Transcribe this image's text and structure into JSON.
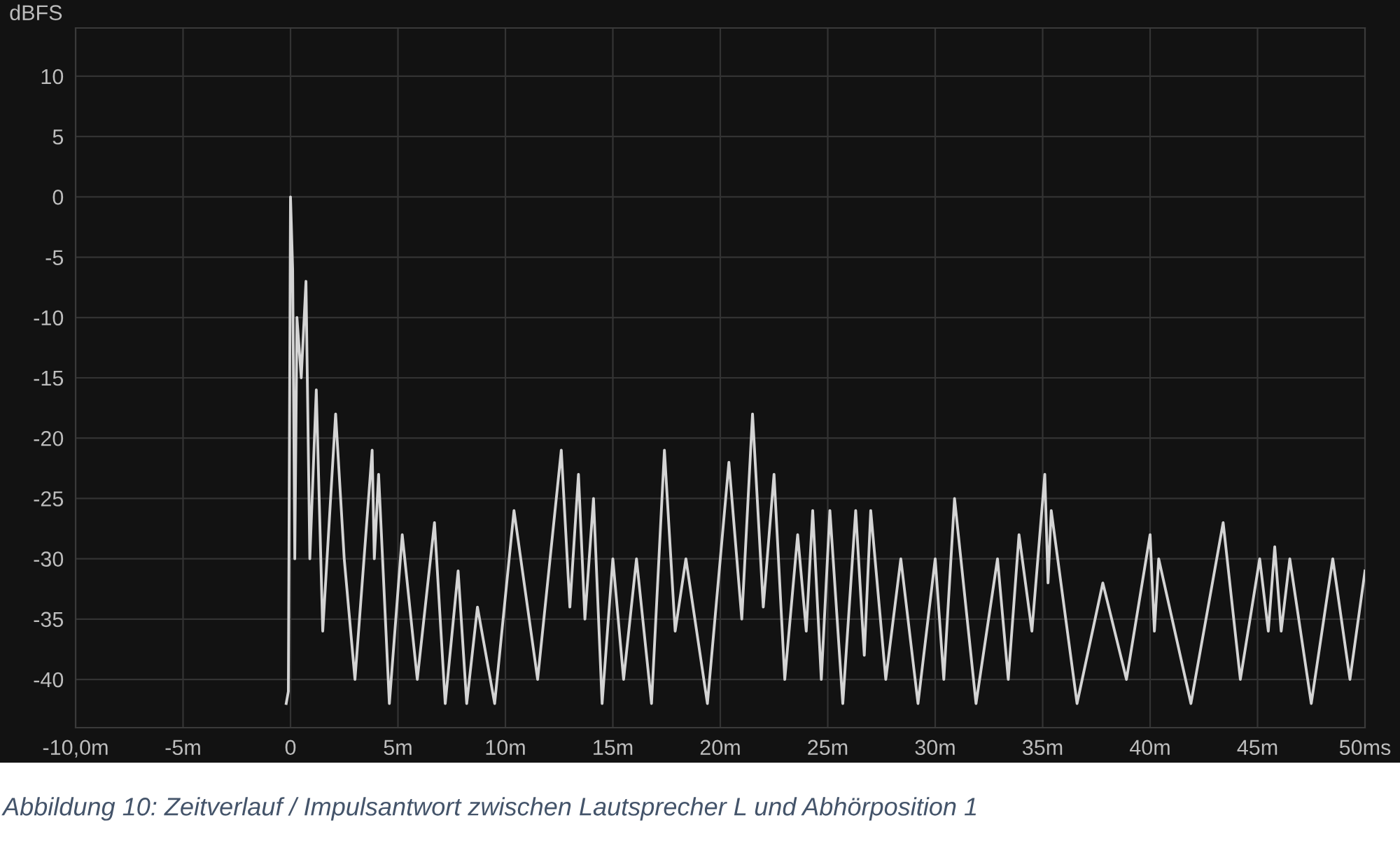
{
  "chart_data": {
    "type": "line",
    "ylabel": "dBFS",
    "annotations": [
      "Abbildung 10: Zeitverlauf / Impulsantwort zwischen Lautsprecher L und Abhörposition 1"
    ],
    "xlim": [
      -10,
      50
    ],
    "ylim": [
      -44,
      14
    ],
    "xticks": [
      {
        "value": -10,
        "label": "-10,0m"
      },
      {
        "value": -5,
        "label": "-5m"
      },
      0,
      {
        "value": 5,
        "label": "5m"
      },
      {
        "value": 10,
        "label": "10m"
      },
      {
        "value": 15,
        "label": "15m"
      },
      {
        "value": 20,
        "label": "20m"
      },
      {
        "value": 25,
        "label": "25m"
      },
      {
        "value": 30,
        "label": "30m"
      },
      {
        "value": 35,
        "label": "35m"
      },
      {
        "value": 40,
        "label": "40m"
      },
      {
        "value": 45,
        "label": "45m"
      },
      {
        "value": 50,
        "label": "50ms"
      }
    ],
    "yticks": [
      10,
      5,
      0,
      -5,
      -10,
      -15,
      -20,
      -25,
      -30,
      -35,
      -40
    ],
    "grid": true,
    "series": [
      {
        "color": "#d4d4d4",
        "x": [
          -0.2,
          -0.1,
          0.0,
          0.1,
          0.2,
          0.3,
          0.5,
          0.72,
          0.9,
          1.2,
          1.5,
          2.1,
          2.5,
          3.0,
          3.8,
          3.9,
          4.1,
          4.6,
          5.2,
          5.9,
          6.7,
          7.2,
          7.8,
          8.2,
          8.7,
          9.5,
          10.4,
          11.5,
          12.6,
          13.0,
          13.4,
          13.7,
          14.1,
          14.5,
          15.0,
          15.5,
          16.1,
          16.8,
          17.4,
          17.9,
          18.4,
          19.4,
          20.4,
          21.0,
          21.5,
          22.0,
          22.5,
          23.0,
          23.6,
          24.0,
          24.3,
          24.7,
          25.1,
          25.7,
          26.3,
          26.7,
          27.0,
          27.7,
          28.4,
          29.2,
          30.0,
          30.4,
          30.9,
          31.9,
          32.9,
          33.4,
          33.9,
          34.5,
          35.1,
          35.25,
          35.4,
          36.6,
          37.8,
          38.9,
          40.0,
          40.2,
          40.4,
          41.9,
          43.4,
          44.2,
          45.1,
          45.5,
          45.8,
          46.1,
          46.5,
          47.5,
          48.5,
          49.3,
          50.0
        ],
        "values": [
          -42,
          -41,
          0,
          -6,
          -30,
          -10,
          -15,
          -7,
          -30,
          -16,
          -36,
          -18,
          -30,
          -40,
          -21,
          -30,
          -23,
          -42,
          -28,
          -40,
          -27,
          -42,
          -31,
          -42,
          -34,
          -42,
          -26,
          -40,
          -21,
          -34,
          -23,
          -35,
          -25,
          -42,
          -30,
          -40,
          -30,
          -42,
          -21,
          -36,
          -30,
          -42,
          -22,
          -35,
          -18,
          -34,
          -23,
          -40,
          -28,
          -36,
          -26,
          -40,
          -26,
          -42,
          -26,
          -38,
          -26,
          -40,
          -30,
          -42,
          -30,
          -40,
          -25,
          -42,
          -30,
          -40,
          -28,
          -36,
          -23,
          -32,
          -26,
          -42,
          -32,
          -40,
          -28,
          -36,
          -30,
          -42,
          -27,
          -40,
          -30,
          -36,
          -29,
          -36,
          -30,
          -42,
          -30,
          -40,
          -31
        ]
      }
    ]
  }
}
